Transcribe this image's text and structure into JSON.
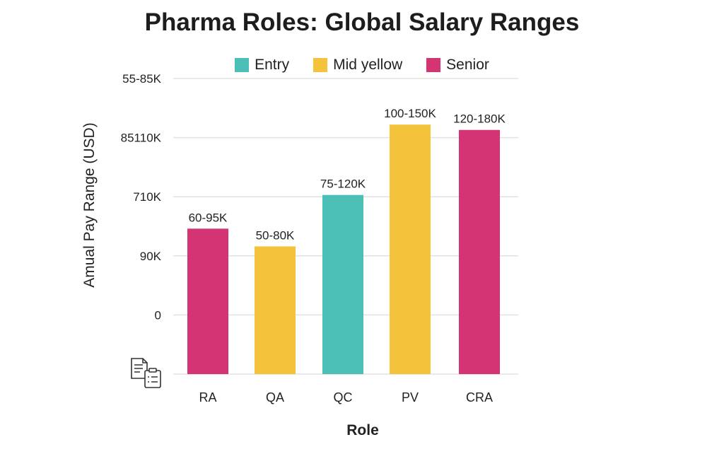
{
  "chart_data": {
    "type": "bar",
    "title": "Pharma Roles: Global Salary Ranges",
    "xlabel": "Role",
    "ylabel": "Amual Pay Range (USD)",
    "categories": [
      "RA",
      "QA",
      "QC",
      "PV",
      "CRA"
    ],
    "values": [
      2.46,
      2.16,
      3.03,
      4.22,
      4.13
    ],
    "data_labels": [
      "60-95K",
      "50-80K",
      "75-120K",
      "100-150K",
      "120-180K"
    ],
    "bar_series": [
      "Senior",
      "Mid yellow",
      "Entry",
      "Mid yellow",
      "Senior"
    ],
    "y_ticks": [
      "",
      "0",
      "90K",
      "710K",
      "85110K",
      "55-85K"
    ],
    "ylim": [
      0,
      5
    ],
    "grid": true,
    "legend_position": "top",
    "legend": [
      {
        "name": "Entry",
        "color": "#4bbfb5"
      },
      {
        "name": "Mid yellow",
        "color": "#f5c33b"
      },
      {
        "name": "Senior",
        "color": "#d43473"
      }
    ]
  },
  "icons": {
    "corner": "document-clipboard-icon"
  }
}
